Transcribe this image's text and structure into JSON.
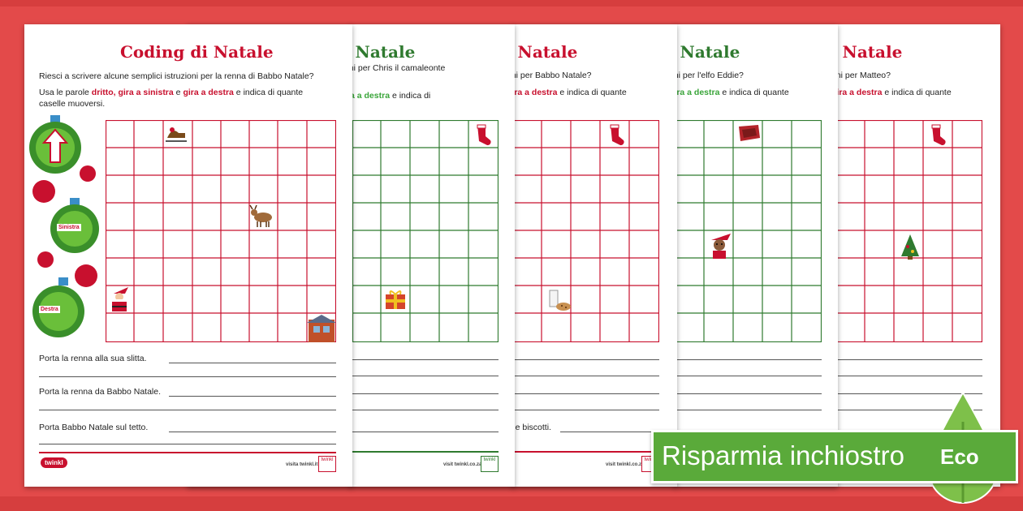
{
  "colors": {
    "background": "#e34a4a",
    "red": "#c8102e",
    "green": "#2f7a2f",
    "banner": "#5aaa3a"
  },
  "sheets": [
    {
      "title": "Coding di Natale",
      "intro": "Riesci a scrivere alcune semplici istruzioni per la renna di Babbo Natale?",
      "use_prefix": "Usa le parole ",
      "use_words": "dritto, gira a sinistra",
      "use_and": " e ",
      "use_words2": "gira a destra",
      "use_suffix": " e indica di quante",
      "use_line2": "caselle muoversi.",
      "tasks": [
        "Porta la renna alla sua slitta.",
        "Porta la renna da Babbo Natale.",
        "Porta Babbo Natale sul tetto."
      ],
      "footer_logo": "twinkl",
      "footer_url": "visita twinkl.it",
      "badge": "twinkl"
    },
    {
      "title_partial": "i Natale",
      "intro_partial": "oni per Chris il camaleonte",
      "use_partial_words": "ira a destra",
      "use_partial_suffix": " e indica di",
      "footer_url": "visit twinkl.co.za",
      "badge": "twinkl"
    },
    {
      "title_partial": "i Natale",
      "intro_partial": "oni per Babbo Natale?",
      "use_partial_words": "gira a destra",
      "use_partial_suffix": " e indica di quante",
      "task_partial": "tte e biscotti.",
      "footer_url": "visit twinkl.co.za",
      "badge": "twinkl"
    },
    {
      "title_partial": "i Natale",
      "intro_partial": "oni per l'elfo Eddie?",
      "use_partial_words": "gira a destra",
      "use_partial_suffix": " e indica di quante"
    },
    {
      "title_partial": "i Natale",
      "intro_partial": "oni per Matteo?",
      "use_partial_words": "gira a destra",
      "use_partial_suffix": " e indica di quante"
    }
  ],
  "ornaments": {
    "left": "Sinistra",
    "right": "Destra"
  },
  "icons": [
    "sleigh-icon",
    "reindeer-icon",
    "santa-icon",
    "house-icon",
    "stocking-icon",
    "gift-icon",
    "milk-cookies-icon",
    "elf-icon",
    "tree-icon",
    "rug-icon"
  ],
  "banner": {
    "text": "Risparmia inchiostro",
    "eco": "Eco"
  }
}
